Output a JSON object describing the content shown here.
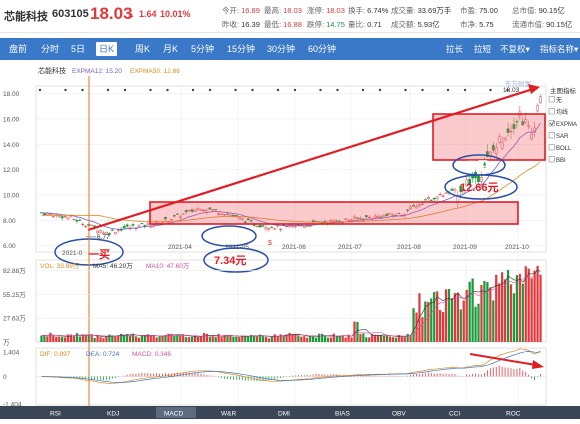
{
  "quote": {
    "name": "芯能科技",
    "code": "603105",
    "price": "18.03",
    "arrow": "▲",
    "change": "1.64",
    "change_pct": "10.01%",
    "stats": [
      {
        "k": "今开:",
        "v": "16.89",
        "c": "red"
      },
      {
        "k": "最高:",
        "v": "18.03",
        "c": "red"
      },
      {
        "k": "涨停:",
        "v": "18.03",
        "c": "red"
      },
      {
        "k": "换手:",
        "v": "6.74%",
        "c": "dark"
      },
      {
        "k": "成交量:",
        "v": "33.69万手",
        "c": "dark"
      },
      {
        "k": "市盈:",
        "v": "75.00",
        "c": "dark"
      },
      {
        "k": "总市值:",
        "v": "90.15亿",
        "c": "dark"
      },
      {
        "k": "昨收:",
        "v": "16.39",
        "c": "dark"
      },
      {
        "k": "最低:",
        "v": "16.88",
        "c": "red"
      },
      {
        "k": "跌停:",
        "v": "14.75",
        "c": "green"
      },
      {
        "k": "量比:",
        "v": "0.71",
        "c": "dark"
      },
      {
        "k": "成交额:",
        "v": "5.93亿",
        "c": "dark"
      },
      {
        "k": "市净:",
        "v": "5.75",
        "c": "dark"
      },
      {
        "k": "流通市值:",
        "v": "90.15亿",
        "c": "dark"
      }
    ]
  },
  "periods": [
    "盘前",
    "分时",
    "5日",
    "日K",
    "周K",
    "月K",
    "5分钟",
    "15分钟",
    "30分钟",
    "60分钟"
  ],
  "active_period": "日K",
  "right_controls": {
    "expand": "拉长",
    "shrink": "拉短",
    "adjust": "不复权",
    "adjust_arrow": "▾",
    "index": "指标名称",
    "index_arrow": "▾"
  },
  "main_panel": {
    "stock_label": "芯能科技",
    "ema_labels": [
      {
        "text": "EXPMA12: 15.20",
        "color": "#7a5bd6"
      },
      {
        "text": "EXPMA50: 12.86",
        "color": "#e08a1e"
      }
    ],
    "y_ticks": [
      "18.00",
      "16.00",
      "14.00",
      "12.00",
      "10.00",
      "8.00",
      "6.00"
    ],
    "x_ticks": [
      "2021-04",
      "2021-05",
      "2021-06",
      "2021-07",
      "2021-08",
      "2021-09",
      "2021-10"
    ],
    "low_label": "6.77",
    "high_label": "18.03",
    "watermark": "东方财富",
    "dividend_mark": "$"
  },
  "indicator_menu": {
    "title": "主图指标",
    "items": [
      {
        "label": "无",
        "checked": false
      },
      {
        "label": "均线",
        "checked": false
      },
      {
        "label": "EXPMA",
        "checked": true
      },
      {
        "label": "SAR",
        "checked": false
      },
      {
        "label": "BOLL",
        "checked": false
      },
      {
        "label": "BBI",
        "checked": false
      }
    ]
  },
  "annotations": {
    "buy1": "一买",
    "buy2": "二买",
    "buy3": "三买",
    "price2": "7.34元",
    "price3": "12.66元",
    "date_partial": "2021-0"
  },
  "volume_panel": {
    "labels": [
      {
        "text": "VOL: 33.69万",
        "color": "#e08a1e"
      },
      {
        "text": "MA5: 46.20万",
        "color": "#333333"
      },
      {
        "text": "MA10: 47.60万",
        "color": "#d94fa0"
      }
    ],
    "y_ticks": [
      "82.88万",
      "55.25万",
      "27.63万",
      "万"
    ]
  },
  "macd_panel": {
    "labels": [
      {
        "text": "DIF: 0.897",
        "color": "#e08a1e"
      },
      {
        "text": "DEA: 0.724",
        "color": "#3a78c8"
      },
      {
        "text": "MACD: 0.346",
        "color": "#d94fa0"
      }
    ],
    "y_ticks": [
      "1.404",
      "0",
      "-1.404"
    ]
  },
  "indicator_tabs": [
    "RSI",
    "KDJ",
    "MACD",
    "W&R",
    "DMI",
    "BIAS",
    "OBV",
    "CCI",
    "ROC"
  ],
  "active_indicator": "MACD",
  "colors": {
    "up": "#e4393c",
    "down": "#1b9a3b",
    "accent": "#3a78c8",
    "annotation_red": "#e31b23",
    "circle_blue": "#2a4fa8"
  }
}
